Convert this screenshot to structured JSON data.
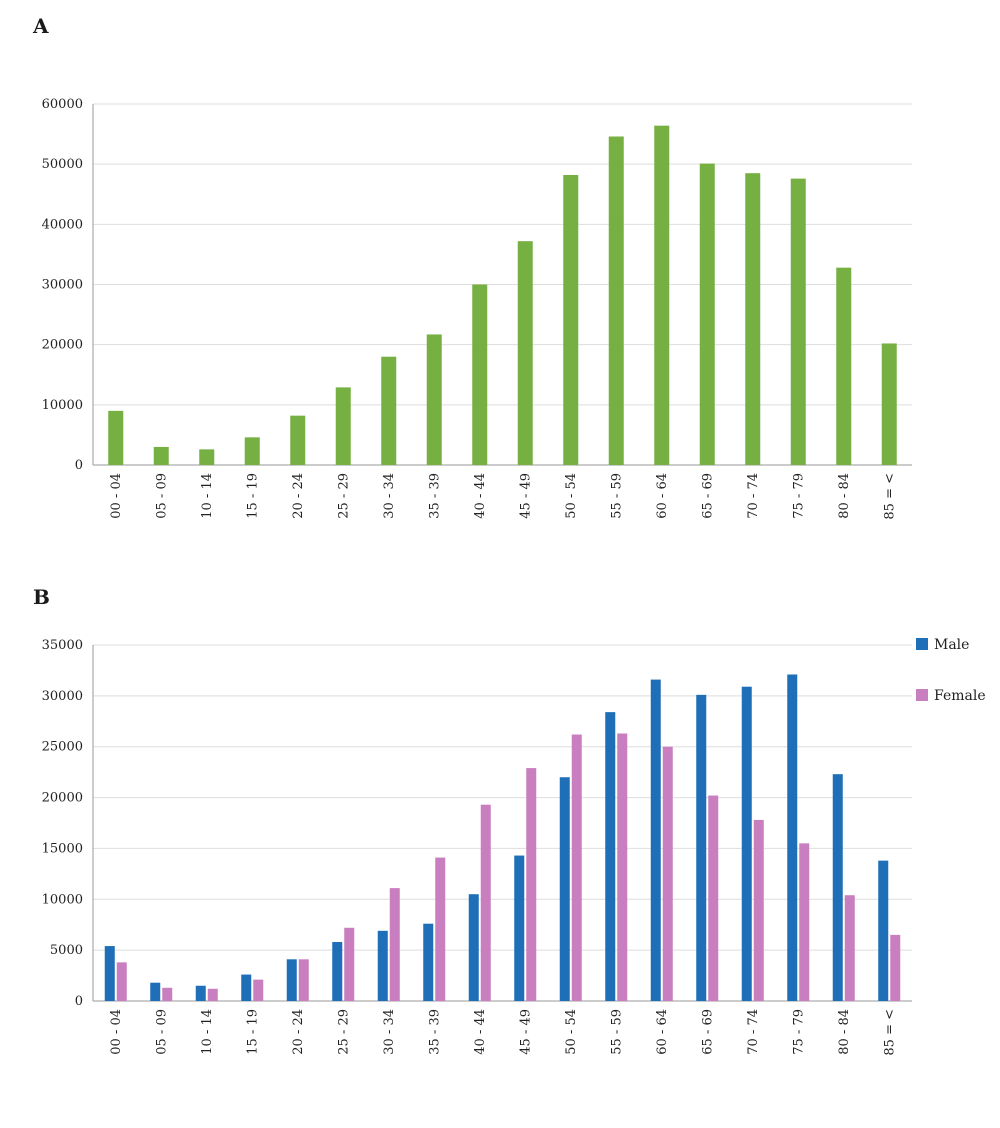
{
  "panels": {
    "a_label": "A",
    "b_label": "B"
  },
  "chart_data": [
    {
      "type": "bar",
      "panel": "A",
      "title": "",
      "xlabel": "",
      "ylabel": "",
      "categories": [
        "00 - 04",
        "05 - 09",
        "10 - 14",
        "15 - 19",
        "20 - 24",
        "25 - 29",
        "30 - 34",
        "35 - 39",
        "40 - 44",
        "45 - 49",
        "50 - 54",
        "55 - 59",
        "60 - 64",
        "65 - 69",
        "70 - 74",
        "75 - 79",
        "80 - 84",
        "85 = <"
      ],
      "series": [
        {
          "color": "#76b043",
          "values": [
            9000,
            3000,
            2600,
            4600,
            8200,
            12900,
            18000,
            21700,
            30000,
            37200,
            48200,
            54600,
            56400,
            50100,
            48500,
            47600,
            32800,
            20200
          ]
        }
      ],
      "ylim": [
        0,
        60000
      ],
      "yticks": [
        0,
        10000,
        20000,
        30000,
        40000,
        50000,
        60000
      ],
      "grid": true,
      "legend": "none"
    },
    {
      "type": "bar",
      "panel": "B",
      "title": "",
      "xlabel": "",
      "ylabel": "",
      "categories": [
        "00 - 04",
        "05 - 09",
        "10 - 14",
        "15 - 19",
        "20 - 24",
        "25 - 29",
        "30 - 34",
        "35 - 39",
        "40 - 44",
        "45 - 49",
        "50 - 54",
        "55 - 59",
        "60 - 64",
        "65 - 69",
        "70 - 74",
        "75 - 79",
        "80 - 84",
        "85 = <"
      ],
      "series": [
        {
          "name": "Male",
          "color": "#1f6fb8",
          "values": [
            5400,
            1800,
            1500,
            2600,
            4100,
            5800,
            6900,
            7600,
            10500,
            14300,
            22000,
            28400,
            31600,
            30100,
            30900,
            32100,
            22300,
            13800
          ]
        },
        {
          "name": "Female",
          "color": "#c97fbf",
          "values": [
            3800,
            1300,
            1200,
            2100,
            4100,
            7200,
            11100,
            14100,
            19300,
            22900,
            26200,
            26300,
            25000,
            20200,
            17800,
            15500,
            10400,
            6500
          ]
        }
      ],
      "ylim": [
        0,
        35000
      ],
      "yticks": [
        0,
        5000,
        10000,
        15000,
        20000,
        25000,
        30000,
        35000
      ],
      "grid": true,
      "legend": "right"
    }
  ]
}
